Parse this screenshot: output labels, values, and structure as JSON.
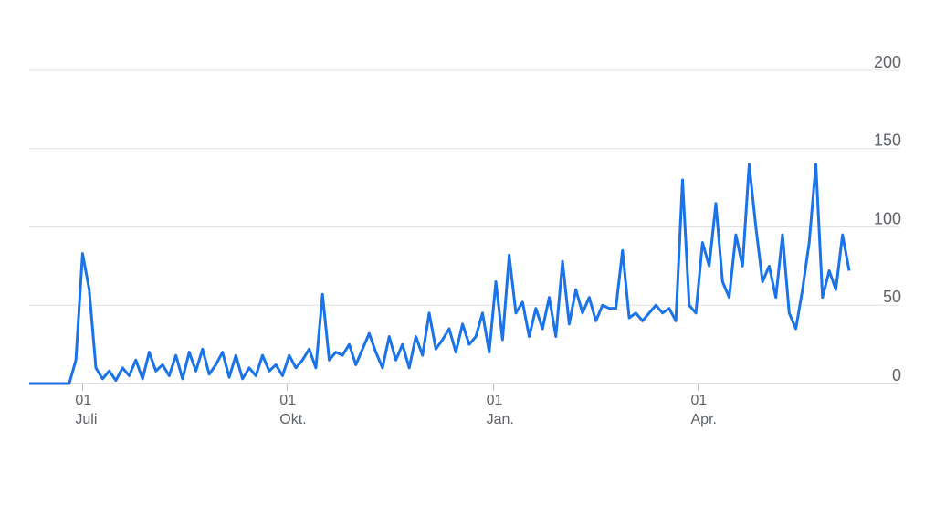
{
  "chart_data": {
    "type": "line",
    "x": [
      0,
      3,
      6,
      9,
      12,
      15,
      18,
      21,
      24,
      27,
      30,
      33,
      36,
      39,
      42,
      45,
      48,
      51,
      54,
      57,
      60,
      63,
      66,
      69,
      72,
      75,
      78,
      81,
      84,
      87,
      90,
      93,
      96,
      99,
      102,
      105,
      108,
      111,
      114,
      117,
      120,
      123,
      126,
      129,
      132,
      135,
      138,
      141,
      144,
      147,
      150,
      153,
      156,
      159,
      162,
      165,
      168,
      171,
      174,
      177,
      180,
      183,
      186,
      189,
      192,
      195,
      198,
      201,
      204,
      207,
      210,
      213,
      216,
      219,
      222,
      225,
      228,
      231,
      234,
      237,
      240,
      243,
      246,
      249,
      252,
      255,
      258,
      261,
      264,
      267,
      270,
      273,
      276,
      279,
      282,
      285,
      288,
      291,
      294,
      297,
      300,
      303,
      306,
      309,
      312,
      315,
      318,
      321,
      324,
      327,
      330,
      333,
      336,
      339,
      342,
      345,
      348,
      351,
      354,
      357,
      360,
      363,
      366,
      369
    ],
    "series": [
      {
        "color": "#1a73e8",
        "values": [
          0,
          0,
          0,
          0,
          0,
          0,
          0,
          15,
          83,
          60,
          10,
          3,
          8,
          2,
          10,
          5,
          15,
          3,
          20,
          8,
          12,
          5,
          18,
          3,
          20,
          8,
          22,
          6,
          12,
          20,
          4,
          18,
          3,
          10,
          5,
          18,
          8,
          12,
          5,
          18,
          10,
          15,
          22,
          10,
          57,
          15,
          20,
          18,
          25,
          12,
          22,
          32,
          20,
          10,
          30,
          15,
          25,
          10,
          30,
          18,
          45,
          22,
          28,
          35,
          20,
          38,
          25,
          30,
          45,
          20,
          65,
          28,
          82,
          45,
          52,
          30,
          48,
          35,
          55,
          30,
          78,
          38,
          60,
          45,
          55,
          40,
          50,
          48,
          48,
          85,
          42,
          45,
          40,
          45,
          50,
          45,
          48,
          40,
          130,
          50,
          45,
          90,
          75,
          115,
          65,
          55,
          95,
          75,
          140,
          100,
          65,
          75,
          55,
          95,
          45,
          35,
          60,
          90,
          140,
          55,
          72,
          60,
          95,
          72
        ]
      }
    ],
    "xlim": [
      0,
      369
    ],
    "xticks": [
      {
        "value": 24,
        "label": "01\nJuli"
      },
      {
        "value": 116,
        "label": "01\nOkt."
      },
      {
        "value": 209,
        "label": "01\nJan."
      },
      {
        "value": 301,
        "label": "01\nApr."
      }
    ],
    "ylim": [
      0,
      200
    ],
    "yticks": [
      0,
      50,
      100,
      150,
      200
    ],
    "grid": true
  }
}
